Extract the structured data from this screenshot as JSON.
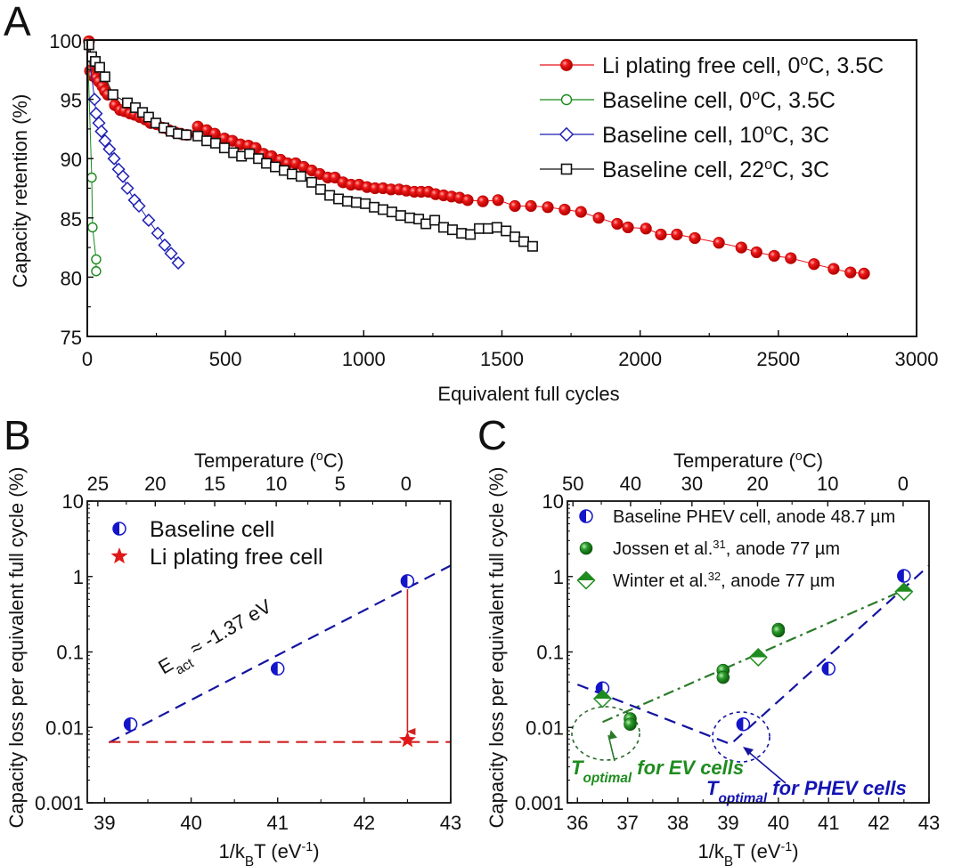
{
  "chart_data": [
    {
      "panel": "A",
      "type": "line",
      "title": "",
      "xlabel": "Equivalent full cycles",
      "ylabel": "Capacity retention (%)",
      "xlim": [
        0,
        3000
      ],
      "ylim": [
        75,
        100
      ],
      "xticks": [
        "0",
        "500",
        "1000",
        "1500",
        "2000",
        "2500",
        "3000"
      ],
      "yticks": [
        "75",
        "80",
        "85",
        "90",
        "95",
        "100"
      ],
      "legend_position": "top-right",
      "series": [
        {
          "name": "Li plating free cell, 0°C, 3.5C",
          "label_main": "Li plating free cell, 0",
          "label_sup": "o",
          "label_tail": "C, 3.5C",
          "color": "#e8101a",
          "marker": "filled-circle",
          "x": [
            6,
            10,
            19,
            32,
            42,
            55,
            64,
            74,
            100,
            119,
            135,
            155,
            171,
            190,
            210,
            229,
            251,
            274,
            296,
            319,
            338,
            361,
            400,
            432,
            461,
            496,
            525,
            554,
            583,
            609,
            638,
            667,
            699,
            725,
            754,
            783,
            812,
            841,
            870,
            896,
            925,
            954,
            983,
            1012,
            1041,
            1070,
            1099,
            1128,
            1154,
            1183,
            1208,
            1234,
            1260,
            1289,
            1318,
            1347,
            1376,
            1431,
            1486,
            1547,
            1605,
            1666,
            1727,
            1786,
            1850,
            1917,
            1956,
            2021,
            2075,
            2133,
            2198,
            2285,
            2366,
            2421,
            2485,
            2545,
            2629,
            2700,
            2761,
            2810
          ],
          "y": [
            99.9,
            97.4,
            97.0,
            96.8,
            96.5,
            96.1,
            95.7,
            95.4,
            94.5,
            94.1,
            94.0,
            93.8,
            93.7,
            93.5,
            93.3,
            93.0,
            92.9,
            92.6,
            92.4,
            92.2,
            92.1,
            92.0,
            92.7,
            92.4,
            92.1,
            91.7,
            91.5,
            91.2,
            91.1,
            90.9,
            90.4,
            90.2,
            89.9,
            89.6,
            89.6,
            89.3,
            89.0,
            88.7,
            88.4,
            88.4,
            88.0,
            87.8,
            87.8,
            87.6,
            87.5,
            87.5,
            87.4,
            87.4,
            87.3,
            87.2,
            87.2,
            87.2,
            87.0,
            86.9,
            86.8,
            86.7,
            86.5,
            86.4,
            86.5,
            86.0,
            86.0,
            85.9,
            85.7,
            85.5,
            85.0,
            84.5,
            84.2,
            84.1,
            83.6,
            83.6,
            83.3,
            82.9,
            82.5,
            82.1,
            81.8,
            81.6,
            81.1,
            80.7,
            80.4,
            80.3
          ]
        },
        {
          "name": "Baseline cell, 0°C, 3.5C",
          "label_main": "Baseline cell, 0",
          "label_sup": "o",
          "label_tail": "C, 3.5C",
          "color": "#1a8a1a",
          "marker": "open-circle",
          "x": [
            0,
            16,
            19,
            32,
            32
          ],
          "y": [
            100,
            88.4,
            84.2,
            81.5,
            80.5
          ]
        },
        {
          "name": "Baseline cell, 10°C, 3C",
          "label_main": "Baseline cell, 10",
          "label_sup": "o",
          "label_tail": "C, 3C",
          "color": "#1f1fb4",
          "marker": "open-diamond",
          "x": [
            0,
            26,
            32,
            42,
            51,
            64,
            80,
            97,
            113,
            129,
            145,
            171,
            187,
            222,
            255,
            280,
            303,
            329
          ],
          "y": [
            100,
            95.0,
            93.8,
            93.0,
            92.3,
            91.5,
            90.8,
            90.0,
            89.1,
            88.5,
            87.5,
            86.5,
            86.0,
            84.8,
            83.7,
            82.7,
            82.0,
            81.2
          ]
        },
        {
          "name": "Baseline cell, 22°C, 3C",
          "label_main": "Baseline cell, 22",
          "label_sup": "o",
          "label_tail": "C, 3C",
          "color": "#111111",
          "marker": "open-square",
          "x": [
            6,
            16,
            29,
            45,
            64,
            93,
            145,
            174,
            200,
            222,
            248,
            277,
            303,
            329,
            358,
            400,
            432,
            464,
            496,
            529,
            558,
            587,
            619,
            648,
            680,
            712,
            741,
            773,
            812,
            844,
            877,
            909,
            941,
            973,
            1006,
            1038,
            1070,
            1102,
            1134,
            1167,
            1199,
            1225,
            1257,
            1289,
            1321,
            1354,
            1386,
            1418,
            1450,
            1482,
            1515,
            1547,
            1579,
            1611
          ],
          "y": [
            99.6,
            98.6,
            98.2,
            97.7,
            96.9,
            95.4,
            94.7,
            94.3,
            93.9,
            93.5,
            93.0,
            92.6,
            92.3,
            92.1,
            92.0,
            91.9,
            91.5,
            91.3,
            90.9,
            90.5,
            90.2,
            90.4,
            90.0,
            89.6,
            89.3,
            89.0,
            88.7,
            88.5,
            88.0,
            87.4,
            86.9,
            86.6,
            86.4,
            86.3,
            86.2,
            85.9,
            85.7,
            85.5,
            85.2,
            85.0,
            84.9,
            84.5,
            84.8,
            84.2,
            84.0,
            83.7,
            83.6,
            84.1,
            84.1,
            84.2,
            83.9,
            83.4,
            83.0,
            82.6
          ]
        }
      ]
    },
    {
      "panel": "B",
      "type": "scatter",
      "xlabel": "1/k_BT (eV^-1)",
      "xlabel_main": "1/k",
      "xlabel_sub": "B",
      "xlabel_mid": "T (eV",
      "xlabel_sup": "-1",
      "xlabel_end": ")",
      "ylabel": "Capacity loss per equivalent full cycle (%)",
      "top_xlabel": "Temperature (°C)",
      "top_xlabel_main": "Temperature (",
      "top_xlabel_sup": "o",
      "top_xlabel_end": "C)",
      "xlim": [
        38.8,
        43
      ],
      "ylim": [
        0.001,
        10
      ],
      "yscale": "log",
      "xticks": [
        "39",
        "40",
        "41",
        "42",
        "43"
      ],
      "yticks": [
        "0.001",
        "0.01",
        "0.1",
        "1",
        "10"
      ],
      "top_xticks_celsius": [
        "25",
        "20",
        "15",
        "10",
        "5",
        "0"
      ],
      "legend_position": "top-left",
      "series": [
        {
          "name": "Baseline cell",
          "color": "#1414c8",
          "marker": "half-filled-circle",
          "x": [
            39.3,
            41.0,
            42.5
          ],
          "y": [
            0.011,
            0.06,
            0.87
          ]
        },
        {
          "name": "Li plating free cell",
          "color": "#e01818",
          "marker": "star",
          "x": [
            42.5
          ],
          "y": [
            0.0068
          ]
        }
      ],
      "fit_lines": [
        {
          "name": "Arrhenius fit",
          "color": "#1414a0",
          "style": "dashed",
          "x": [
            39.05,
            43.0
          ],
          "y": [
            0.0063,
            1.4
          ]
        },
        {
          "name": "Li plating free level",
          "color": "#d02020",
          "style": "dashed",
          "x": [
            39.05,
            43.0
          ],
          "y": [
            0.0064,
            0.0064
          ]
        }
      ],
      "arrow": {
        "color": "#d02020",
        "x": 42.5,
        "y_from": 0.68,
        "y_to": 0.0088
      },
      "annotations": [
        {
          "text_main": "E",
          "text_sub": "act",
          "text_tail": " ≈ -1.37 eV",
          "color": "#1414a0"
        }
      ]
    },
    {
      "panel": "C",
      "type": "scatter",
      "xlabel": "1/k_BT (eV^-1)",
      "ylabel": "Capacity loss per equivalent full cycle (%)",
      "top_xlabel": "Temperature (°C)",
      "xlim": [
        35.8,
        43
      ],
      "ylim": [
        0.001,
        10
      ],
      "yscale": "log",
      "xticks": [
        "36",
        "37",
        "38",
        "39",
        "40",
        "41",
        "42",
        "43"
      ],
      "yticks": [
        "0.001",
        "0.01",
        "0.1",
        "1",
        "10"
      ],
      "top_xticks_celsius": [
        "50",
        "40",
        "30",
        "20",
        "10",
        "0"
      ],
      "legend_position": "top-left",
      "series": [
        {
          "name": "Baseline PHEV cell, anode 48.7 µm",
          "label_main": "Baseline PHEV cell, anode 48.7 µm",
          "label_sup": "",
          "label_tail": "",
          "color": "#1414c8",
          "marker": "half-filled-circle",
          "x": [
            36.5,
            39.3,
            41.0,
            42.5
          ],
          "y": [
            0.033,
            0.011,
            0.06,
            1.02
          ]
        },
        {
          "name": "Jossen et al.31, anode 77 µm",
          "label_main": "Jossen et al.",
          "label_sup": "31",
          "label_tail": ", anode 77 µm",
          "color": "#1e8c1e",
          "marker": "sphere",
          "x": [
            37.05,
            37.05,
            38.9,
            38.9,
            40.0,
            40.0
          ],
          "y": [
            0.013,
            0.011,
            0.057,
            0.046,
            0.2,
            0.19
          ]
        },
        {
          "name": "Winter et al.32, anode 77 µm",
          "label_main": "Winter et al.",
          "label_sup": "32",
          "label_tail": ", anode 77 µm",
          "color": "#1e8c1e",
          "marker": "half-filled-diamond",
          "x": [
            36.5,
            39.6,
            42.5
          ],
          "y": [
            0.024,
            0.085,
            0.63
          ]
        }
      ],
      "fit_lines": [
        {
          "name": "EV trend",
          "color": "#2a7a2a",
          "style": "dash-dot",
          "x": [
            36.5,
            42.5
          ],
          "y": [
            0.0118,
            0.66
          ]
        },
        {
          "name": "PHEV trend",
          "color": "#1414a0",
          "style": "dashed",
          "x": [
            36.0,
            39.05,
            43.0
          ],
          "y": [
            0.037,
            0.006,
            1.4
          ]
        }
      ],
      "annotations": [
        {
          "text_main": "T",
          "text_sub": "optimal",
          "text_tail": " for EV cells",
          "color": "#1e8c1e",
          "x": 36.55,
          "y": 0.0118
        },
        {
          "text_main": "T",
          "text_sub": "optimal",
          "text_tail": " for PHEV cells",
          "color": "#1414b4",
          "x": 39.1,
          "y": 0.0064
        }
      ]
    }
  ],
  "panel_labels": [
    "A",
    "B",
    "C"
  ]
}
